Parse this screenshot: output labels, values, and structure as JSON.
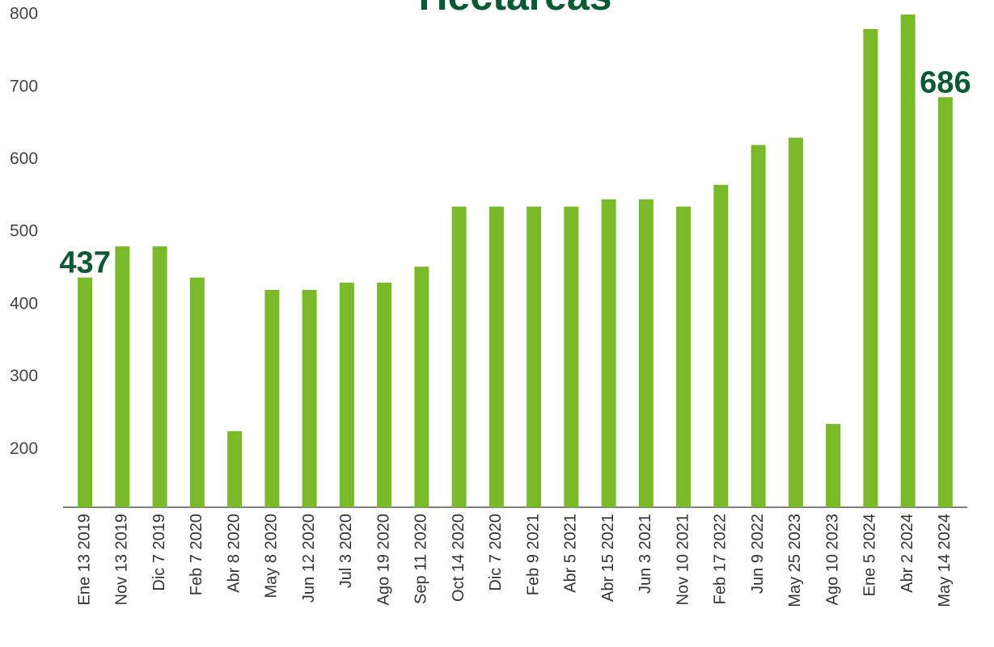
{
  "chart_data": {
    "type": "bar",
    "title": "Hectareas",
    "categories": [
      "Ene 13 2019",
      "Nov 13 2019",
      "Dic 7 2019",
      "Feb 7 2020",
      "Abr 8 2020",
      "May 8 2020",
      "Jun 12 2020",
      "Jul 3 2020",
      "Ago 19 2020",
      "Sep 11 2020",
      "Oct 14 2020",
      "Dic 7 2020",
      "Feb 9 2021",
      "Abr 5 2021",
      "Abr 15 2021",
      "Jun 3 2021",
      "Nov 10 2021",
      "Feb 17 2022",
      "Jun 9 2022",
      "May 25 2023",
      "Ago 10 2023",
      "Ene 5 2024",
      "Abr 2 2024",
      "May 14 2024"
    ],
    "values": [
      437,
      480,
      480,
      437,
      225,
      420,
      420,
      430,
      430,
      452,
      535,
      535,
      535,
      535,
      545,
      545,
      535,
      565,
      620,
      630,
      235,
      780,
      800,
      686
    ],
    "value_labels": [
      "437",
      null,
      null,
      null,
      null,
      null,
      null,
      null,
      null,
      null,
      null,
      null,
      null,
      null,
      null,
      null,
      null,
      null,
      null,
      null,
      null,
      null,
      null,
      "686"
    ],
    "color": "#7ab929",
    "ylim": [
      120,
      800
    ],
    "yticks": [
      200,
      300,
      400,
      500,
      600,
      700,
      800
    ],
    "grid": false
  }
}
